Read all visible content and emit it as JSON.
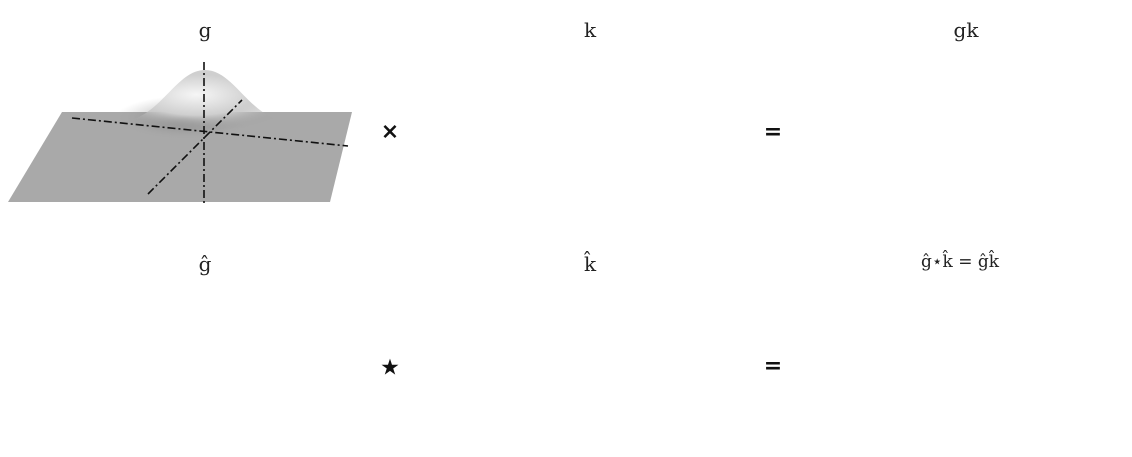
{
  "labels": {
    "top": [
      "g",
      "k",
      "gk"
    ],
    "bottom": [
      "ĝ",
      "k̂",
      "ĝ⋆k̂ = ĝk̂"
    ]
  },
  "operators": {
    "top": [
      "×",
      "="
    ],
    "bottom": [
      "★",
      "="
    ]
  },
  "colors": {
    "plane": "#a9a9a9",
    "plane_edge": "#9a9a9a",
    "axis": "#111111",
    "spike": "#000000",
    "bump_light": "#f2f2f2",
    "bump_dark": "#6b6b6b"
  },
  "panels": [
    {
      "id": "g",
      "type": "gaussian-surface"
    },
    {
      "id": "k",
      "type": "dense-spike-lattice"
    },
    {
      "id": "gk",
      "type": "sampled-gaussian"
    },
    {
      "id": "g-hat",
      "type": "narrow-gaussian"
    },
    {
      "id": "k-hat",
      "type": "sparse-spike-lattice"
    },
    {
      "id": "g-hat-conv-k-hat",
      "type": "periodic-gaussians"
    }
  ]
}
